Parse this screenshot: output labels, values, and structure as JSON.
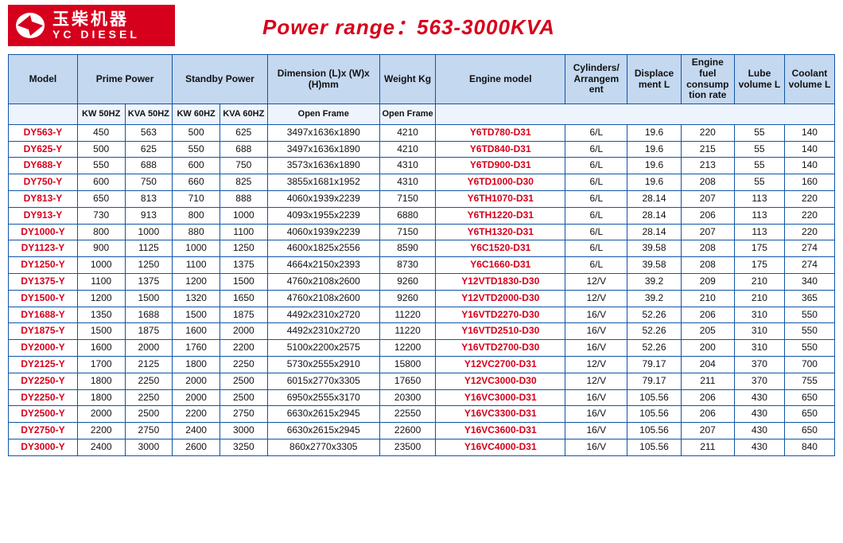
{
  "logo": {
    "cn": "玉柴机器",
    "en": "YC DIESEL",
    "bg": "#d6001c",
    "fg": "#ffffff"
  },
  "title": "Power  range：563-3000KVA",
  "title_color": "#d6001c",
  "header_bg": "#c4d8f0",
  "subheader_bg": "#eef4fc",
  "border_color": "#1155a6",
  "accent_text": "#d6001c",
  "table": {
    "columns_top": [
      "Model",
      "Prime Power",
      "Standby Power",
      "Dimension (L)x (W)x (H)mm",
      "Weight Kg",
      "Engine model",
      "Cylinders/ Arrangem ent",
      "Displace ment L",
      "Engine fuel consump tion rate",
      "Lube volume L",
      "Coolant volume L"
    ],
    "columns_sub": [
      "",
      "KW 50HZ",
      "KVA 50HZ",
      "KW 60HZ",
      "KVA 60HZ",
      "Open Frame",
      "Open Frame",
      "",
      "",
      "",
      "",
      "",
      ""
    ],
    "rows": [
      {
        "model": "DY563-Y",
        "kw50": "450",
        "kva50": "563",
        "kw60": "500",
        "kva60": "625",
        "dim": "3497x1636x1890",
        "wt": "4210",
        "engine": "Y6TD780-D31",
        "cyl": "6/L",
        "disp": "19.6",
        "fuel": "220",
        "lube": "55",
        "cool": "140"
      },
      {
        "model": "DY625-Y",
        "kw50": "500",
        "kva50": "625",
        "kw60": "550",
        "kva60": "688",
        "dim": "3497x1636x1890",
        "wt": "4210",
        "engine": "Y6TD840-D31",
        "cyl": "6/L",
        "disp": "19.6",
        "fuel": "215",
        "lube": "55",
        "cool": "140"
      },
      {
        "model": "DY688-Y",
        "kw50": "550",
        "kva50": "688",
        "kw60": "600",
        "kva60": "750",
        "dim": "3573x1636x1890",
        "wt": "4310",
        "engine": "Y6TD900-D31",
        "cyl": "6/L",
        "disp": "19.6",
        "fuel": "213",
        "lube": "55",
        "cool": "140"
      },
      {
        "model": "DY750-Y",
        "kw50": "600",
        "kva50": "750",
        "kw60": "660",
        "kva60": "825",
        "dim": "3855x1681x1952",
        "wt": "4310",
        "engine": "Y6TD1000-D30",
        "cyl": "6/L",
        "disp": "19.6",
        "fuel": "208",
        "lube": "55",
        "cool": "160"
      },
      {
        "model": "DY813-Y",
        "kw50": "650",
        "kva50": "813",
        "kw60": "710",
        "kva60": "888",
        "dim": "4060x1939x2239",
        "wt": "7150",
        "engine": "Y6TH1070-D31",
        "cyl": "6/L",
        "disp": "28.14",
        "fuel": "207",
        "lube": "113",
        "cool": "220"
      },
      {
        "model": "DY913-Y",
        "kw50": "730",
        "kva50": "913",
        "kw60": "800",
        "kva60": "1000",
        "dim": "4093x1955x2239",
        "wt": "6880",
        "engine": "Y6TH1220-D31",
        "cyl": "6/L",
        "disp": "28.14",
        "fuel": "206",
        "lube": "113",
        "cool": "220"
      },
      {
        "model": "DY1000-Y",
        "kw50": "800",
        "kva50": "1000",
        "kw60": "880",
        "kva60": "1100",
        "dim": "4060x1939x2239",
        "wt": "7150",
        "engine": "Y6TH1320-D31",
        "cyl": "6/L",
        "disp": "28.14",
        "fuel": "207",
        "lube": "113",
        "cool": "220"
      },
      {
        "model": "DY1123-Y",
        "kw50": "900",
        "kva50": "1125",
        "kw60": "1000",
        "kva60": "1250",
        "dim": "4600x1825x2556",
        "wt": "8590",
        "engine": "Y6C1520-D31",
        "cyl": "6/L",
        "disp": "39.58",
        "fuel": "208",
        "lube": "175",
        "cool": "274"
      },
      {
        "model": "DY1250-Y",
        "kw50": "1000",
        "kva50": "1250",
        "kw60": "1100",
        "kva60": "1375",
        "dim": "4664x2150x2393",
        "wt": "8730",
        "engine": "Y6C1660-D31",
        "cyl": "6/L",
        "disp": "39.58",
        "fuel": "208",
        "lube": "175",
        "cool": "274"
      },
      {
        "model": "DY1375-Y",
        "kw50": "1100",
        "kva50": "1375",
        "kw60": "1200",
        "kva60": "1500",
        "dim": "4760x2108x2600",
        "wt": "9260",
        "engine": "Y12VTD1830-D30",
        "cyl": "12/V",
        "disp": "39.2",
        "fuel": "209",
        "lube": "210",
        "cool": "340"
      },
      {
        "model": "DY1500-Y",
        "kw50": "1200",
        "kva50": "1500",
        "kw60": "1320",
        "kva60": "1650",
        "dim": "4760x2108x2600",
        "wt": "9260",
        "engine": "Y12VTD2000-D30",
        "cyl": "12/V",
        "disp": "39.2",
        "fuel": "210",
        "lube": "210",
        "cool": "365"
      },
      {
        "model": "DY1688-Y",
        "kw50": "1350",
        "kva50": "1688",
        "kw60": "1500",
        "kva60": "1875",
        "dim": "4492x2310x2720",
        "wt": "11220",
        "engine": "Y16VTD2270-D30",
        "cyl": "16/V",
        "disp": "52.26",
        "fuel": "206",
        "lube": "310",
        "cool": "550"
      },
      {
        "model": "DY1875-Y",
        "kw50": "1500",
        "kva50": "1875",
        "kw60": "1600",
        "kva60": "2000",
        "dim": "4492x2310x2720",
        "wt": "11220",
        "engine": "Y16VTD2510-D30",
        "cyl": "16/V",
        "disp": "52.26",
        "fuel": "205",
        "lube": "310",
        "cool": "550"
      },
      {
        "model": "DY2000-Y",
        "kw50": "1600",
        "kva50": "2000",
        "kw60": "1760",
        "kva60": "2200",
        "dim": "5100x2200x2575",
        "wt": "12200",
        "engine": "Y16VTD2700-D30",
        "cyl": "16/V",
        "disp": "52.26",
        "fuel": "200",
        "lube": "310",
        "cool": "550"
      },
      {
        "model": "DY2125-Y",
        "kw50": "1700",
        "kva50": "2125",
        "kw60": "1800",
        "kva60": "2250",
        "dim": "5730x2555x2910",
        "wt": "15800",
        "engine": "Y12VC2700-D31",
        "cyl": "12/V",
        "disp": "79.17",
        "fuel": "204",
        "lube": "370",
        "cool": "700"
      },
      {
        "model": "DY2250-Y",
        "kw50": "1800",
        "kva50": "2250",
        "kw60": "2000",
        "kva60": "2500",
        "dim": "6015x2770x3305",
        "wt": "17650",
        "engine": "Y12VC3000-D30",
        "cyl": "12/V",
        "disp": "79.17",
        "fuel": "211",
        "lube": "370",
        "cool": "755"
      },
      {
        "model": "DY2250-Y",
        "kw50": "1800",
        "kva50": "2250",
        "kw60": "2000",
        "kva60": "2500",
        "dim": "6950x2555x3170",
        "wt": "20300",
        "engine": "Y16VC3000-D31",
        "cyl": "16/V",
        "disp": "105.56",
        "fuel": "206",
        "lube": "430",
        "cool": "650"
      },
      {
        "model": "DY2500-Y",
        "kw50": "2000",
        "kva50": "2500",
        "kw60": "2200",
        "kva60": "2750",
        "dim": "6630x2615x2945",
        "wt": "22550",
        "engine": "Y16VC3300-D31",
        "cyl": "16/V",
        "disp": "105.56",
        "fuel": "206",
        "lube": "430",
        "cool": "650"
      },
      {
        "model": "DY2750-Y",
        "kw50": "2200",
        "kva50": "2750",
        "kw60": "2400",
        "kva60": "3000",
        "dim": "6630x2615x2945",
        "wt": "22600",
        "engine": "Y16VC3600-D31",
        "cyl": "16/V",
        "disp": "105.56",
        "fuel": "207",
        "lube": "430",
        "cool": "650"
      },
      {
        "model": "DY3000-Y",
        "kw50": "2400",
        "kva50": "3000",
        "kw60": "2600",
        "kva60": "3250",
        "dim": "860x2770x3305",
        "wt": "23500",
        "engine": "Y16VC4000-D31",
        "cyl": "16/V",
        "disp": "105.56",
        "fuel": "211",
        "lube": "430",
        "cool": "840"
      }
    ]
  }
}
